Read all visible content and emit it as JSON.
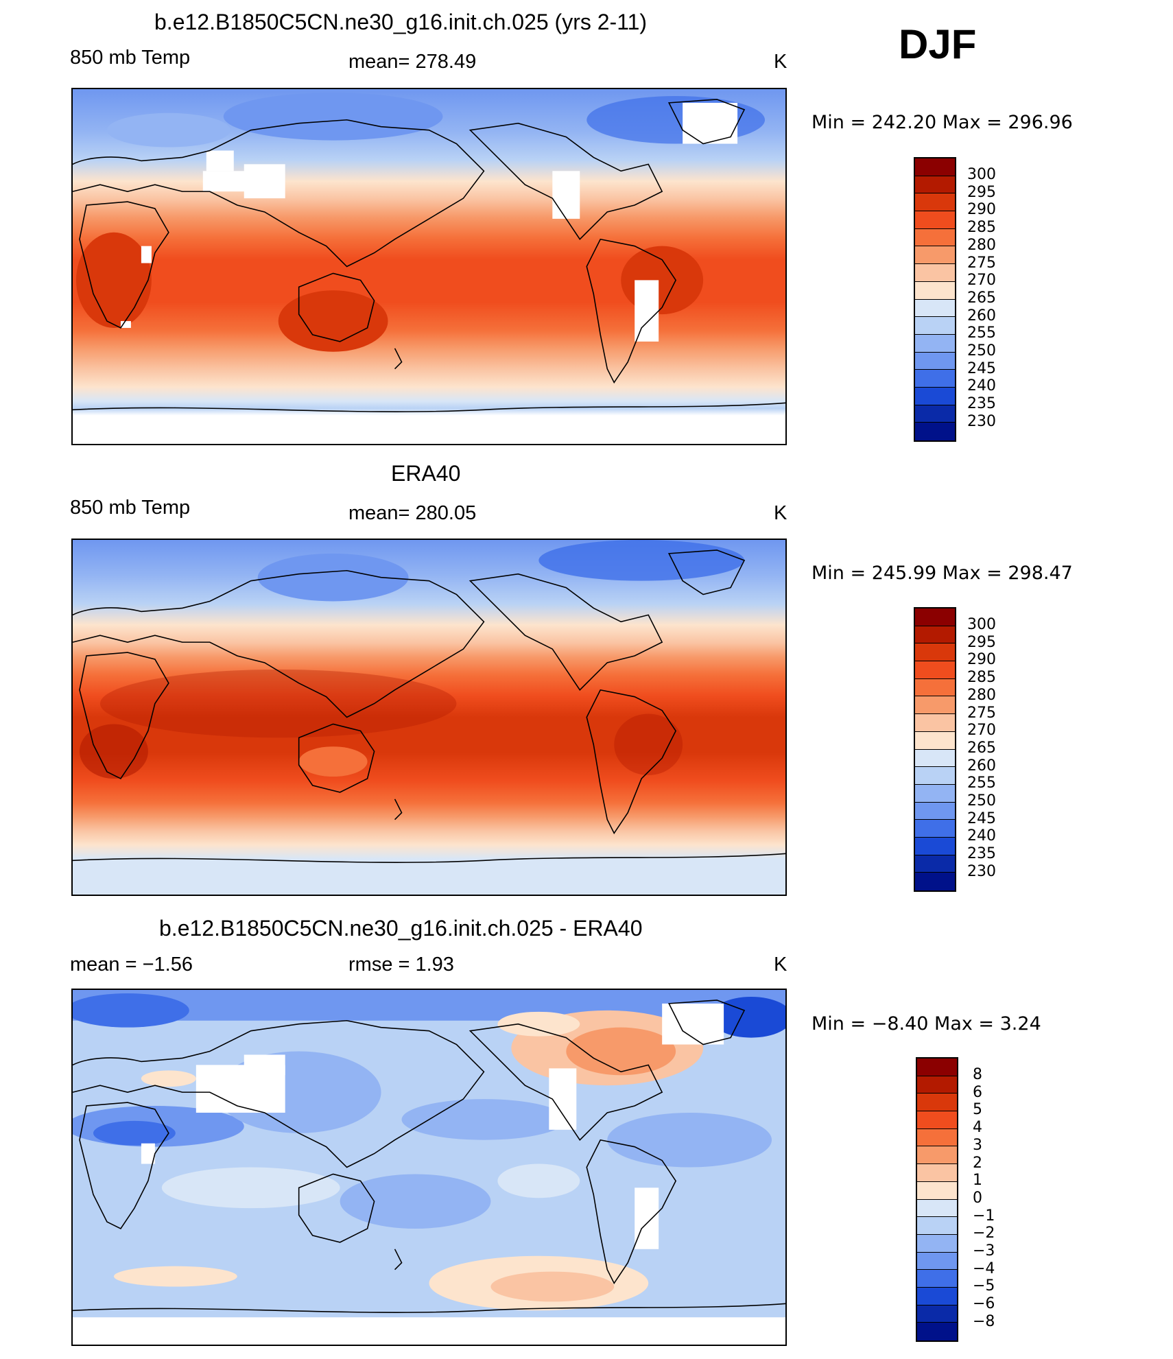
{
  "season": "DJF",
  "colorbar_abs": {
    "labels": [
      "300",
      "295",
      "290",
      "285",
      "280",
      "275",
      "270",
      "265",
      "260",
      "255",
      "250",
      "245",
      "240",
      "235",
      "230"
    ],
    "colors": [
      "#8b0000",
      "#b31a00",
      "#d9380b",
      "#f04d1e",
      "#f5703a",
      "#f79a6a",
      "#fac4a3",
      "#fde4cd",
      "#d8e6f7",
      "#b9d2f5",
      "#93b4f3",
      "#6f97f0",
      "#3f6fe8",
      "#1a4ad6",
      "#0a2aa8",
      "#00118a"
    ]
  },
  "colorbar_diff": {
    "labels": [
      "8",
      "6",
      "5",
      "4",
      "3",
      "2",
      "1",
      "0",
      "−1",
      "−2",
      "−3",
      "−4",
      "−5",
      "−6",
      "−8"
    ],
    "colors": [
      "#8b0000",
      "#b31a00",
      "#d9380b",
      "#f04d1e",
      "#f5703a",
      "#f79a6a",
      "#fac4a3",
      "#fde4cd",
      "#d8e6f7",
      "#b9d2f5",
      "#93b4f3",
      "#6f97f0",
      "#3f6fe8",
      "#1a4ad6",
      "#0a2aa8",
      "#00118a"
    ]
  },
  "panels": [
    {
      "title": "b.e12.B1850C5CN.ne30_g16.init.ch.025 (yrs 2-11)",
      "left_label": "850 mb Temp",
      "center_label": "mean=  278.49",
      "units": "K",
      "minmax": "Min  =  242.20  Max  =  296.96",
      "missing_regions": [
        "Tibetan Plateau",
        "Greenland",
        "Rocky Mountains",
        "Andes",
        "East Africa highlands",
        "Antarctica"
      ]
    },
    {
      "title": "ERA40",
      "left_label": "850 mb Temp",
      "center_label": "mean=  280.05",
      "units": "K",
      "minmax": "Min  =  245.99  Max  =  298.47"
    },
    {
      "title": "b.e12.B1850C5CN.ne30_g16.init.ch.025 - ERA40",
      "left_label": "mean  =    −1.56",
      "center_label": "rmse  =     1.93",
      "units": "K",
      "minmax": "Min  =    −8.40  Max  =     3.24"
    }
  ]
}
